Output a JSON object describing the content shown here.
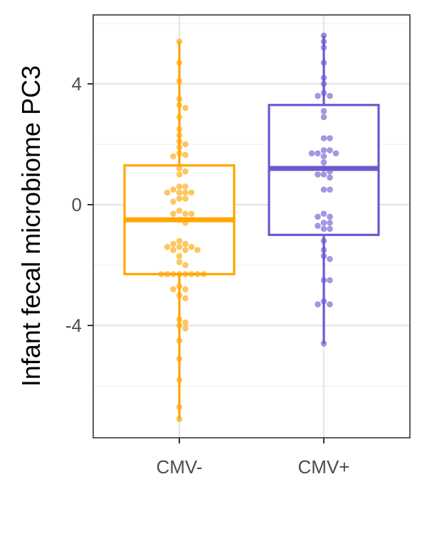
{
  "chart_data": {
    "type": "boxplot",
    "title": "",
    "xlabel": "",
    "ylabel": "Infant fecal microbiome PC3",
    "ylim": [
      -7.8,
      6.2
    ],
    "yticks": [
      4,
      0,
      -4
    ],
    "ytick_labels": [
      "4",
      "0",
      "-4"
    ],
    "categories": [
      "CMV-",
      "CMV+"
    ],
    "grid": true,
    "legend": "none",
    "colors": {
      "CMV-": "#FFA500",
      "CMV+": "#6A5ACD"
    },
    "boxes": [
      {
        "group": "CMV-",
        "whisker_low": -7.1,
        "q1": -2.3,
        "median": -0.5,
        "q3": 1.3,
        "whisker_high": 5.4
      },
      {
        "group": "CMV+",
        "whisker_low": -4.6,
        "q1": -1.0,
        "median": 1.2,
        "q3": 3.3,
        "whisker_high": 5.6
      }
    ],
    "points": [
      {
        "group": "CMV-",
        "y": [
          5.4,
          4.7,
          4.1,
          3.5,
          3.3,
          3.2,
          2.9,
          2.5,
          2.3,
          2.1,
          2.0,
          1.9,
          1.7,
          1.65,
          1.6,
          1.2,
          1.1,
          1.0,
          0.6,
          0.6,
          0.5,
          0.4,
          0.4,
          0.4,
          0.4,
          0.2,
          0.2,
          0.1,
          -0.2,
          -0.3,
          -0.3,
          -0.3,
          -0.5,
          -0.6,
          -1.2,
          -1.3,
          -1.3,
          -1.4,
          -1.4,
          -1.4,
          -1.5,
          -1.5,
          -1.5,
          -1.7,
          -1.9,
          -2.0,
          -2.3,
          -2.3,
          -2.3,
          -2.3,
          -2.3,
          -2.3,
          -2.3,
          -2.3,
          -2.7,
          -2.8,
          -2.8,
          -3.0,
          -3.1,
          -3.8,
          -3.9,
          -4.0,
          -4.1,
          -4.5,
          -5.1,
          -5.8,
          -6.7,
          -7.1
        ]
      },
      {
        "group": "CMV+",
        "y": [
          5.6,
          5.4,
          5.2,
          4.7,
          4.2,
          4.0,
          3.7,
          3.6,
          3.6,
          3.1,
          2.9,
          2.2,
          2.2,
          1.8,
          1.8,
          1.7,
          1.7,
          1.7,
          1.6,
          1.4,
          1.2,
          1.1,
          1.0,
          1.0,
          0.9,
          0.5,
          0.5,
          -0.3,
          -0.4,
          -0.4,
          -0.6,
          -0.6,
          -0.7,
          -0.8,
          -0.8,
          -1.2,
          -1.5,
          -1.7,
          -1.8,
          -2.5,
          -2.5,
          -3.2,
          -3.3,
          -3.3,
          -4.6
        ]
      }
    ]
  }
}
